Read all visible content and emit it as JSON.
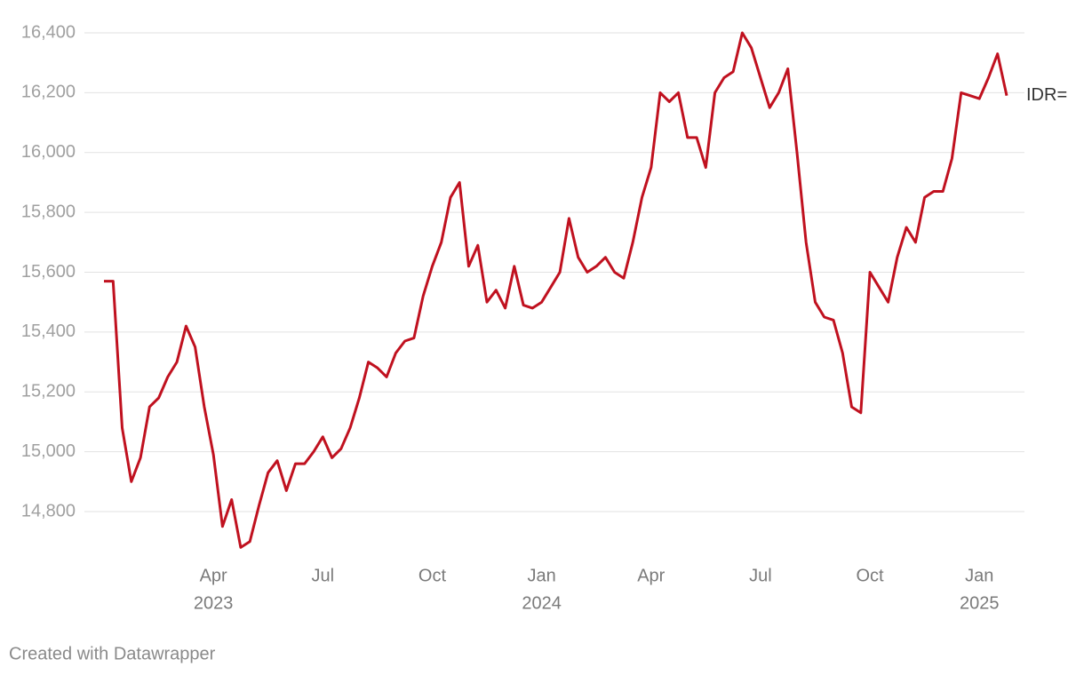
{
  "chart_data": {
    "type": "line",
    "x": [
      "2023-01",
      "2023-01",
      "2023-01",
      "2023-01",
      "2023-02",
      "2023-02",
      "2023-02",
      "2023-02",
      "2023-03",
      "2023-03",
      "2023-03",
      "2023-03",
      "2023-04",
      "2023-04",
      "2023-04",
      "2023-04",
      "2023-05",
      "2023-05",
      "2023-05",
      "2023-05",
      "2023-06",
      "2023-06",
      "2023-06",
      "2023-06",
      "2023-07",
      "2023-07",
      "2023-07",
      "2023-07",
      "2023-08",
      "2023-08",
      "2023-08",
      "2023-08",
      "2023-09",
      "2023-09",
      "2023-09",
      "2023-09",
      "2023-10",
      "2023-10",
      "2023-10",
      "2023-10",
      "2023-11",
      "2023-11",
      "2023-11",
      "2023-11",
      "2023-12",
      "2023-12",
      "2023-12",
      "2023-12",
      "2024-01",
      "2024-01",
      "2024-01",
      "2024-01",
      "2024-02",
      "2024-02",
      "2024-02",
      "2024-02",
      "2024-03",
      "2024-03",
      "2024-03",
      "2024-03",
      "2024-04",
      "2024-04",
      "2024-04",
      "2024-04",
      "2024-05",
      "2024-05",
      "2024-05",
      "2024-05",
      "2024-06",
      "2024-06",
      "2024-06",
      "2024-06",
      "2024-07",
      "2024-07",
      "2024-07",
      "2024-07",
      "2024-08",
      "2024-08",
      "2024-08",
      "2024-08",
      "2024-09",
      "2024-09",
      "2024-09",
      "2024-09",
      "2024-10",
      "2024-10",
      "2024-10",
      "2024-10",
      "2024-11",
      "2024-11",
      "2024-11",
      "2024-11",
      "2024-12",
      "2024-12",
      "2024-12",
      "2024-12",
      "2025-01",
      "2025-01",
      "2025-01",
      "2025-01"
    ],
    "series": [
      {
        "name": "IDR=",
        "color": "#c0111f",
        "values": [
          15570,
          15570,
          15080,
          14900,
          14980,
          15150,
          15180,
          15250,
          15300,
          15420,
          15350,
          15150,
          14990,
          14750,
          14840,
          14680,
          14700,
          14820,
          14930,
          14970,
          14870,
          14960,
          14960,
          15000,
          15050,
          14980,
          15010,
          15080,
          15180,
          15300,
          15280,
          15250,
          15330,
          15370,
          15380,
          15520,
          15620,
          15700,
          15850,
          15900,
          15620,
          15690,
          15500,
          15540,
          15480,
          15620,
          15490,
          15480,
          15500,
          15550,
          15600,
          15780,
          15650,
          15600,
          15620,
          15650,
          15600,
          15580,
          15700,
          15850,
          15950,
          16200,
          16170,
          16200,
          16050,
          16050,
          15950,
          16200,
          16250,
          16270,
          16400,
          16350,
          16250,
          16150,
          16200,
          16280,
          16000,
          15700,
          15500,
          15450,
          15440,
          15330,
          15150,
          15130,
          15600,
          15550,
          15500,
          15650,
          15750,
          15700,
          15850,
          15870,
          15870,
          15980,
          16200,
          16190,
          16180,
          16250,
          16330,
          16190
        ]
      }
    ],
    "xlim": [
      "2023-01",
      "2025-01"
    ],
    "xticks": [
      {
        "value": "2023-04",
        "label": "Apr",
        "year": "2023"
      },
      {
        "value": "2023-07",
        "label": "Jul"
      },
      {
        "value": "2023-10",
        "label": "Oct"
      },
      {
        "value": "2024-01",
        "label": "Jan",
        "year": "2024"
      },
      {
        "value": "2024-04",
        "label": "Apr"
      },
      {
        "value": "2024-07",
        "label": "Jul"
      },
      {
        "value": "2024-10",
        "label": "Oct"
      },
      {
        "value": "2025-01",
        "label": "Jan",
        "year": "2025"
      }
    ],
    "ylim": [
      14650,
      16450
    ],
    "yticks": [
      {
        "value": 14800,
        "label": "14,800"
      },
      {
        "value": 15000,
        "label": "15,000"
      },
      {
        "value": 15200,
        "label": "15,200"
      },
      {
        "value": 15400,
        "label": "15,400"
      },
      {
        "value": 15600,
        "label": "15,600"
      },
      {
        "value": 15800,
        "label": "15,800"
      },
      {
        "value": 16000,
        "label": "16,000"
      },
      {
        "value": 16200,
        "label": "16,200"
      },
      {
        "value": 16400,
        "label": "16,400"
      }
    ],
    "grid": true,
    "footer": "Created with Datawrapper"
  }
}
